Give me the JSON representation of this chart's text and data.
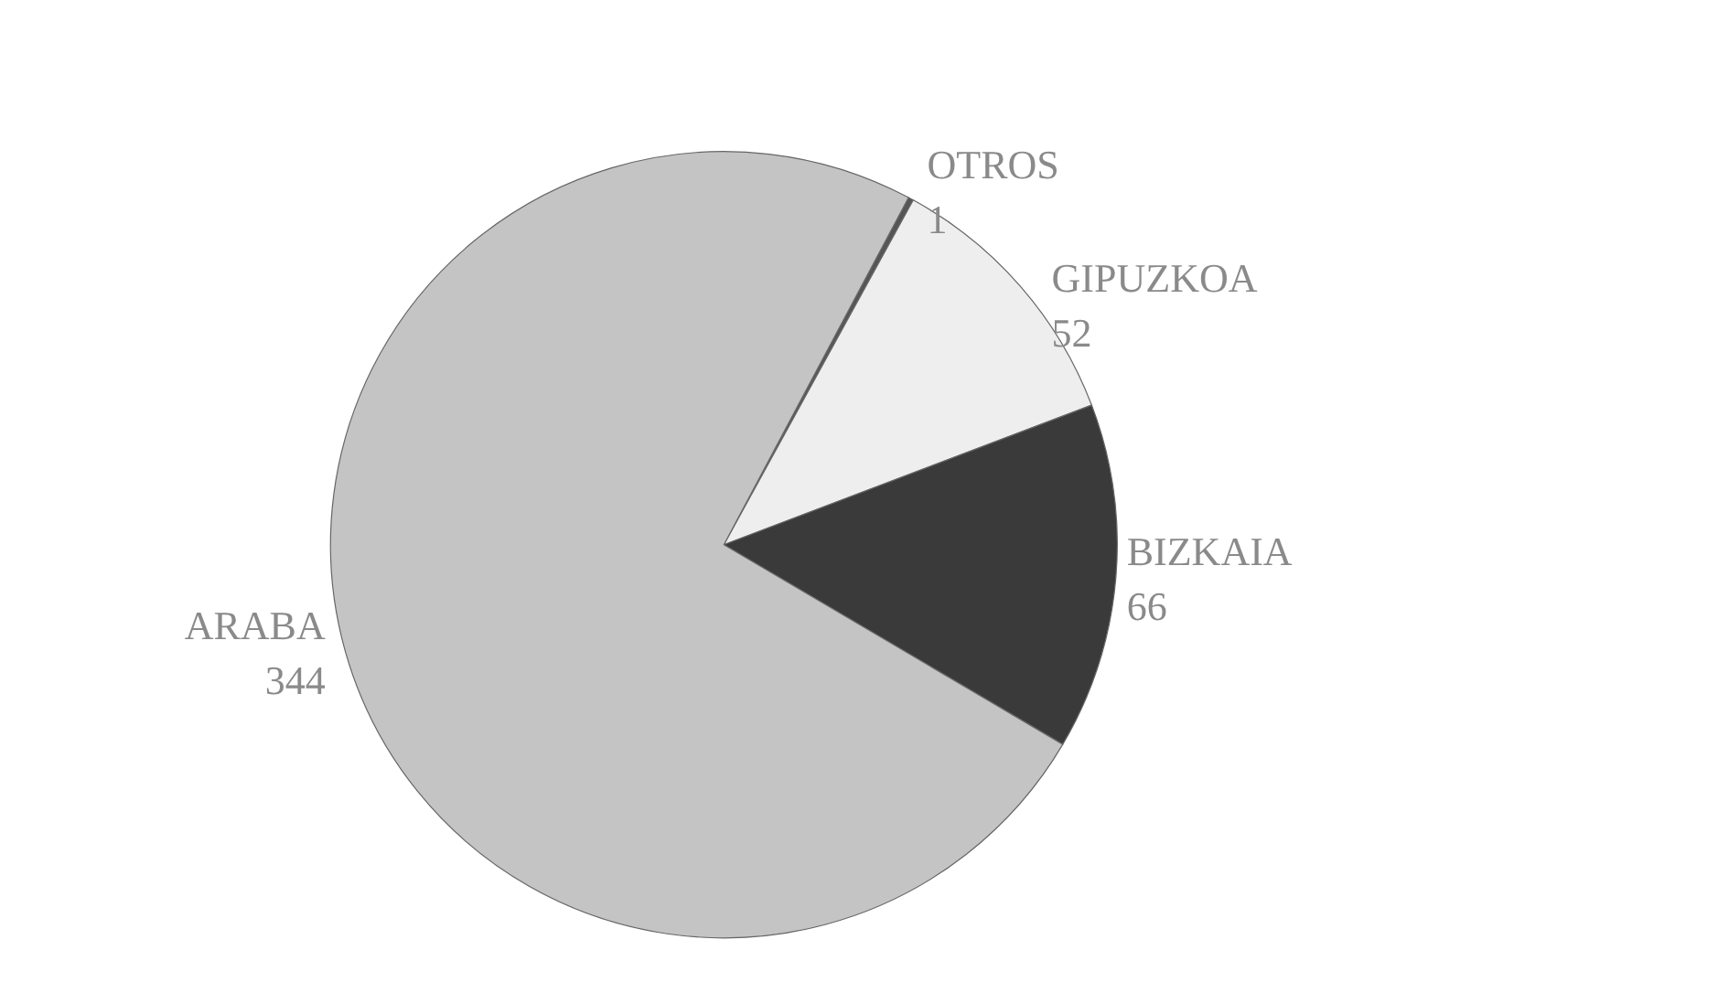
{
  "chart_data": {
    "type": "pie",
    "categories": [
      "OTROS",
      "GIPUZKOA",
      "BIZKAIA",
      "ARABA"
    ],
    "values": [
      1,
      52,
      66,
      344
    ],
    "colors": [
      "#555555",
      "#eeeeee",
      "#3a3a3a",
      "#c4c4c4"
    ],
    "data_labels": true
  }
}
